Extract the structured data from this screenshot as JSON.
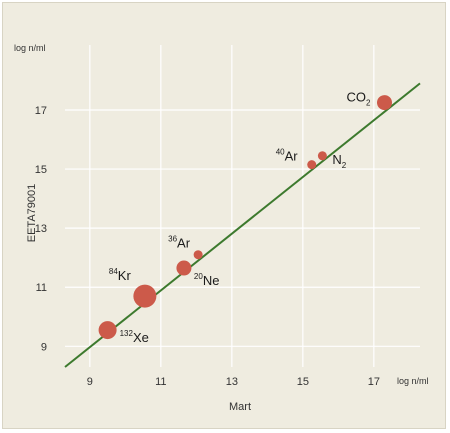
{
  "chart_data": {
    "type": "scatter",
    "title": "",
    "xlabel": "Mart",
    "ylabel": "EETA79001",
    "x_unit": "log n/ml",
    "y_unit": "log n/ml",
    "xlim": [
      8.3,
      18.3
    ],
    "ylim": [
      8.3,
      19.2
    ],
    "xticks": [
      9,
      11,
      13,
      15,
      17
    ],
    "yticks": [
      9,
      11,
      13,
      15,
      17
    ],
    "grid": true,
    "line": {
      "x": [
        8.3,
        18.3
      ],
      "y": [
        8.3,
        17.9
      ],
      "color": "#3d7a2e"
    },
    "point_color": "#cc5a4a",
    "points": [
      {
        "sup": "132",
        "base": "Xe",
        "sub": "",
        "x": 9.5,
        "y": 9.55,
        "size": 3
      },
      {
        "sup": "84",
        "base": "Kr",
        "sub": "",
        "x": 10.55,
        "y": 10.7,
        "size": 4
      },
      {
        "sup": "20",
        "base": "Ne",
        "sub": "",
        "x": 11.65,
        "y": 11.65,
        "size": 2
      },
      {
        "sup": "36",
        "base": "Ar",
        "sub": "",
        "x": 12.05,
        "y": 12.1,
        "size": 1
      },
      {
        "sup": "40",
        "base": "Ar",
        "sub": "",
        "x": 15.25,
        "y": 15.15,
        "size": 1
      },
      {
        "sup": "",
        "base": "N",
        "sub": "2",
        "x": 15.55,
        "y": 15.45,
        "size": 1
      },
      {
        "sup": "",
        "base": "CO",
        "sub": "2",
        "x": 17.3,
        "y": 17.25,
        "size": 2
      }
    ]
  }
}
